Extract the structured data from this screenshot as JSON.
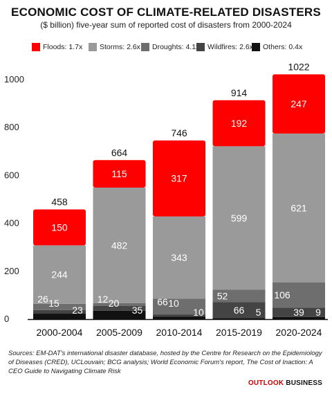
{
  "header": {
    "title": "ECONOMIC COST OF CLIMATE-RELATED DISASTERS",
    "subtitle": "($ billion) five-year sum of reported cost of disasters from 2000-2024"
  },
  "legend": [
    {
      "label": "Floods: 1.7x",
      "color": "#ff0000"
    },
    {
      "label": "Storms: 2.6x",
      "color": "#9a9a9a"
    },
    {
      "label": "Droughts: 4.1x",
      "color": "#6e6e6e"
    },
    {
      "label": "Wildfires: 2.6x",
      "color": "#444444"
    },
    {
      "label": "Others: 0.4x",
      "color": "#111111"
    }
  ],
  "chart_data": {
    "type": "bar",
    "stacked": true,
    "categories": [
      "2000-2004",
      "2005-2009",
      "2010-2014",
      "2015-2019",
      "2020-2024"
    ],
    "series": [
      {
        "name": "Others",
        "color": "#111111",
        "values": [
          23,
          35,
          10,
          5,
          9
        ]
      },
      {
        "name": "Wildfires",
        "color": "#444444",
        "values": [
          15,
          20,
          10,
          66,
          39
        ]
      },
      {
        "name": "Droughts",
        "color": "#6e6e6e",
        "values": [
          26,
          12,
          66,
          52,
          106
        ]
      },
      {
        "name": "Storms",
        "color": "#9a9a9a",
        "values": [
          244,
          482,
          343,
          599,
          621
        ]
      },
      {
        "name": "Floods",
        "color": "#ff0000",
        "values": [
          150,
          115,
          317,
          192,
          247
        ]
      }
    ],
    "totals": [
      458,
      664,
      746,
      914,
      1022
    ],
    "ylim": [
      0,
      1000
    ],
    "yticks": [
      0,
      200,
      400,
      600,
      800,
      1000
    ],
    "grid": false,
    "legend_position": "top"
  },
  "source": "Sources: EM-DAT's international disaster database, hosted by the Centre for Research on the Epidemiology of Diseases (CRED), UCLouvain; BCG analysis; World Economic Forum's report, The Cost of Inaction: A CEO Guide to Navigating Climate Risk",
  "brand": {
    "part1": "OUTLOOK",
    "part2": " BUSINESS"
  }
}
